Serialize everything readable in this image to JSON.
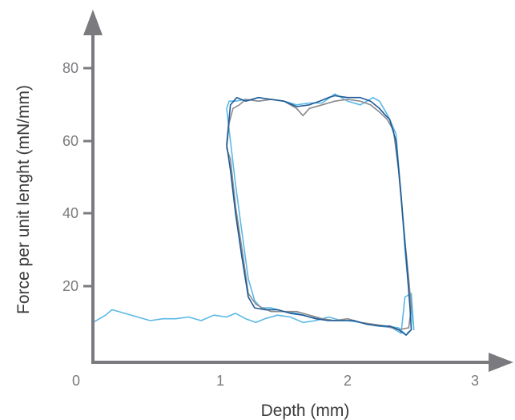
{
  "chart_data": {
    "type": "line",
    "title": "",
    "xlabel": "Depth (mm)",
    "ylabel": "Force per unit lenght (mN/mm)",
    "xlim": [
      0,
      3
    ],
    "ylim": [
      -2,
      92
    ],
    "x_ticks": [
      "0",
      "1",
      "2",
      "3"
    ],
    "y_ticks": [
      "20",
      "40",
      "60",
      "80"
    ],
    "grid": false,
    "legend": "none",
    "series": [
      {
        "color": "#5bb8e6",
        "x": [
          0.0,
          0.1,
          0.15,
          0.25,
          0.35,
          0.45,
          0.55,
          0.65,
          0.75,
          0.85,
          0.95,
          1.05,
          1.12,
          1.2,
          1.28,
          1.35,
          1.45,
          1.55,
          1.65,
          1.75,
          1.85,
          1.95,
          2.05,
          2.15,
          2.25,
          2.35,
          2.42,
          2.45,
          2.5,
          2.52,
          2.48,
          2.45,
          2.42,
          2.38,
          2.33,
          2.3,
          2.25,
          2.2,
          2.1,
          2.0,
          1.9,
          1.8,
          1.7,
          1.6,
          1.5,
          1.4,
          1.3,
          1.2,
          1.12,
          1.07,
          1.05,
          1.08,
          1.12,
          1.17,
          1.22,
          1.27,
          1.32,
          1.4,
          1.5,
          1.6,
          1.7,
          1.8,
          1.9,
          2.0,
          2.1,
          2.2,
          2.3,
          2.4,
          2.46,
          2.48
        ],
        "y": [
          10,
          12,
          13.5,
          12.5,
          11.5,
          10.5,
          11,
          11,
          11.5,
          10.5,
          12,
          11.5,
          12.5,
          11,
          10,
          11,
          12,
          11.5,
          10,
          10.5,
          11.5,
          10.5,
          10.5,
          9.5,
          9,
          8.5,
          7,
          17,
          18,
          8,
          19,
          30,
          45,
          62,
          66,
          68,
          71,
          72,
          70,
          71,
          73,
          70.5,
          70.5,
          70,
          71,
          71.5,
          71,
          71.5,
          71,
          71,
          69,
          60,
          48,
          35,
          22,
          16,
          14,
          14,
          13,
          12.5,
          11.5,
          11,
          10.5,
          10.5,
          10,
          9.5,
          9,
          8.5,
          6.5,
          7.5
        ]
      },
      {
        "color": "#8a8a8e",
        "x": [
          1.07,
          1.05,
          1.08,
          1.12,
          1.18,
          1.22,
          1.28,
          1.33,
          1.4,
          1.5,
          1.6,
          1.7,
          1.8,
          1.9,
          2.0,
          2.1,
          2.2,
          2.3,
          2.4,
          2.48,
          2.5,
          2.48,
          2.44,
          2.4,
          2.36,
          2.31,
          2.25,
          2.18,
          2.1,
          2.0,
          1.9,
          1.8,
          1.7,
          1.65,
          1.6,
          1.5,
          1.4,
          1.3,
          1.2,
          1.15,
          1.1,
          1.07
        ],
        "y": [
          65,
          58,
          55,
          42,
          28,
          18,
          15,
          14,
          13,
          13,
          13,
          12,
          11,
          10.5,
          11,
          10,
          9.5,
          9,
          8,
          8.5,
          14,
          22,
          36,
          52,
          63,
          66,
          68,
          70,
          71,
          71.5,
          71,
          70,
          69,
          67,
          69,
          71,
          71.5,
          71,
          71.5,
          70,
          69,
          65
        ]
      },
      {
        "color": "#1f5a96",
        "x": [
          1.05,
          1.08,
          1.12,
          1.17,
          1.22,
          1.27,
          1.35,
          1.45,
          1.55,
          1.65,
          1.75,
          1.85,
          1.95,
          2.05,
          2.15,
          2.25,
          2.33,
          2.4,
          2.46,
          2.5,
          2.49,
          2.46,
          2.42,
          2.38,
          2.33,
          2.3,
          2.25,
          2.18,
          2.1,
          2.0,
          1.9,
          1.85,
          1.78,
          1.7,
          1.6,
          1.5,
          1.4,
          1.3,
          1.2,
          1.13,
          1.08,
          1.05
        ],
        "y": [
          59,
          52,
          40,
          28,
          17,
          14,
          13.5,
          13.5,
          12.5,
          12,
          11,
          10.5,
          10.5,
          10.5,
          9.5,
          9,
          9,
          8,
          6.5,
          8,
          14,
          28,
          45,
          60,
          66,
          67,
          69,
          71,
          72,
          72,
          72.5,
          72,
          71,
          70,
          69.5,
          71,
          71.5,
          72,
          71,
          72,
          70,
          59
        ]
      }
    ]
  }
}
